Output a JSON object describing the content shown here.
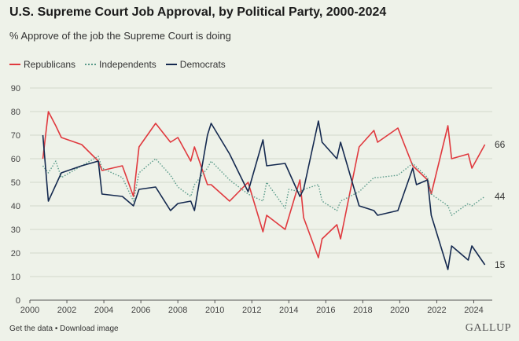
{
  "title": "U.S. Supreme Court Job Approval, by Political Party, 2000-2024",
  "subtitle": "% Approve of the job the Supreme Court is doing",
  "footer": {
    "get_data": "Get the data",
    "separator": " • ",
    "download": "Download image"
  },
  "logo": "GALLUP",
  "colors": {
    "republicans": "#e0393e",
    "independents": "#5a9b8a",
    "democrats": "#14294f",
    "grid": "#d2d8cc",
    "axis": "#555555",
    "background": "#eef2e9"
  },
  "chart_data": {
    "type": "line",
    "title": "U.S. Supreme Court Job Approval, by Political Party, 2000-2024",
    "subtitle": "% Approve of the job the Supreme Court is doing",
    "xlabel": "",
    "ylabel": "",
    "xlim": [
      2000,
      2025
    ],
    "ylim": [
      0,
      90
    ],
    "x_ticks": [
      2000,
      2002,
      2004,
      2006,
      2008,
      2010,
      2012,
      2014,
      2016,
      2018,
      2020,
      2022,
      2024
    ],
    "y_ticks": [
      0,
      10,
      20,
      30,
      40,
      50,
      60,
      70,
      80,
      90
    ],
    "grid": true,
    "legend_position": "top-left",
    "series": [
      {
        "name": "Republicans",
        "style": "solid",
        "end_label": "66",
        "points": [
          [
            2000.7,
            60
          ],
          [
            2001.0,
            80
          ],
          [
            2001.4,
            74
          ],
          [
            2001.7,
            69
          ],
          [
            2002.8,
            66
          ],
          [
            2003.7,
            59
          ],
          [
            2003.9,
            55
          ],
          [
            2005.0,
            57
          ],
          [
            2005.6,
            44
          ],
          [
            2005.9,
            65
          ],
          [
            2006.8,
            75
          ],
          [
            2007.6,
            67
          ],
          [
            2008.0,
            69
          ],
          [
            2008.7,
            59
          ],
          [
            2008.9,
            65
          ],
          [
            2009.6,
            49
          ],
          [
            2009.8,
            49
          ],
          [
            2010.8,
            42
          ],
          [
            2011.8,
            50
          ],
          [
            2012.6,
            29
          ],
          [
            2012.8,
            36
          ],
          [
            2013.8,
            30
          ],
          [
            2014.6,
            51
          ],
          [
            2014.8,
            35
          ],
          [
            2015.6,
            18
          ],
          [
            2015.8,
            26
          ],
          [
            2016.6,
            32
          ],
          [
            2016.8,
            26
          ],
          [
            2017.8,
            65
          ],
          [
            2018.6,
            72
          ],
          [
            2018.8,
            67
          ],
          [
            2019.9,
            73
          ],
          [
            2020.7,
            57
          ],
          [
            2021.5,
            51
          ],
          [
            2021.7,
            45
          ],
          [
            2022.6,
            74
          ],
          [
            2022.8,
            60
          ],
          [
            2023.7,
            62
          ],
          [
            2023.9,
            56
          ],
          [
            2024.6,
            66
          ]
        ]
      },
      {
        "name": "Independents",
        "style": "dotted",
        "end_label": "44",
        "points": [
          [
            2000.7,
            57
          ],
          [
            2001.0,
            54
          ],
          [
            2001.4,
            59
          ],
          [
            2001.7,
            52
          ],
          [
            2002.8,
            57
          ],
          [
            2003.7,
            61
          ],
          [
            2003.9,
            56
          ],
          [
            2005.0,
            52
          ],
          [
            2005.6,
            42
          ],
          [
            2005.9,
            54
          ],
          [
            2006.8,
            60
          ],
          [
            2007.6,
            53
          ],
          [
            2008.0,
            48
          ],
          [
            2008.7,
            44
          ],
          [
            2008.9,
            49
          ],
          [
            2009.6,
            56
          ],
          [
            2009.8,
            59
          ],
          [
            2010.8,
            51
          ],
          [
            2011.8,
            45
          ],
          [
            2012.6,
            42
          ],
          [
            2012.8,
            50
          ],
          [
            2013.8,
            39
          ],
          [
            2014.0,
            47
          ],
          [
            2014.6,
            46
          ],
          [
            2014.8,
            47
          ],
          [
            2015.6,
            49
          ],
          [
            2015.8,
            42
          ],
          [
            2016.6,
            38
          ],
          [
            2016.8,
            42
          ],
          [
            2017.8,
            46
          ],
          [
            2018.6,
            52
          ],
          [
            2018.8,
            52
          ],
          [
            2019.9,
            53
          ],
          [
            2020.7,
            58
          ],
          [
            2021.5,
            52
          ],
          [
            2021.7,
            45
          ],
          [
            2022.6,
            40
          ],
          [
            2022.8,
            36
          ],
          [
            2023.7,
            41
          ],
          [
            2023.9,
            40
          ],
          [
            2024.6,
            44
          ]
        ]
      },
      {
        "name": "Democrats",
        "style": "solid",
        "end_label": "15",
        "points": [
          [
            2000.7,
            70
          ],
          [
            2001.0,
            42
          ],
          [
            2001.7,
            54
          ],
          [
            2002.8,
            57
          ],
          [
            2003.7,
            59
          ],
          [
            2003.9,
            45
          ],
          [
            2005.0,
            44
          ],
          [
            2005.6,
            40
          ],
          [
            2005.9,
            47
          ],
          [
            2006.8,
            48
          ],
          [
            2007.6,
            38
          ],
          [
            2008.0,
            41
          ],
          [
            2008.7,
            42
          ],
          [
            2008.9,
            38
          ],
          [
            2009.6,
            70
          ],
          [
            2009.8,
            75
          ],
          [
            2010.8,
            62
          ],
          [
            2011.8,
            46
          ],
          [
            2012.6,
            68
          ],
          [
            2012.8,
            57
          ],
          [
            2013.8,
            58
          ],
          [
            2014.6,
            44
          ],
          [
            2014.8,
            47
          ],
          [
            2015.6,
            76
          ],
          [
            2015.8,
            67
          ],
          [
            2016.6,
            60
          ],
          [
            2016.8,
            67
          ],
          [
            2017.8,
            40
          ],
          [
            2018.6,
            38
          ],
          [
            2018.8,
            36
          ],
          [
            2019.9,
            38
          ],
          [
            2020.7,
            56
          ],
          [
            2020.9,
            49
          ],
          [
            2021.5,
            51
          ],
          [
            2021.7,
            36
          ],
          [
            2022.6,
            13
          ],
          [
            2022.8,
            23
          ],
          [
            2023.7,
            17
          ],
          [
            2023.9,
            23
          ],
          [
            2024.6,
            15
          ]
        ]
      }
    ]
  }
}
